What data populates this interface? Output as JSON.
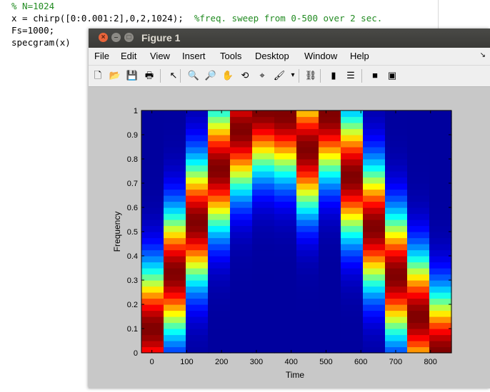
{
  "editor": {
    "lines": [
      {
        "text": "% N=1024",
        "comment": true
      },
      {
        "text": "x = chirp([0:0.001:2],0,2,1024);  %freq. sweep from 0-500 over 2 sec.",
        "comment": false
      },
      {
        "text": "Fs=1000;",
        "comment": false
      },
      {
        "text": "specgram(x)",
        "comment": false
      }
    ]
  },
  "window": {
    "title": "Figure 1",
    "buttons": {
      "close": "×",
      "minimize": "–",
      "maximize": "□"
    }
  },
  "menu": [
    "File",
    "Edit",
    "View",
    "Insert",
    "Tools",
    "Desktop",
    "Window",
    "Help"
  ],
  "menu_arrow": "↘",
  "toolbar": [
    {
      "name": "new-figure-icon",
      "glyph": "🗋"
    },
    {
      "name": "open-file-icon",
      "glyph": "📂"
    },
    {
      "name": "save-icon",
      "glyph": "💾"
    },
    {
      "name": "print-icon",
      "glyph": "🖶"
    },
    {
      "name": "edit-plot-arrow-icon",
      "glyph": "↖"
    },
    {
      "name": "zoom-in-icon",
      "glyph": "🔍"
    },
    {
      "name": "zoom-out-icon",
      "glyph": "🔎"
    },
    {
      "name": "pan-hand-icon",
      "glyph": "✋"
    },
    {
      "name": "rotate-3d-icon",
      "glyph": "⟲"
    },
    {
      "name": "data-cursor-icon",
      "glyph": "⌖"
    },
    {
      "name": "brush-icon",
      "glyph": "🖌"
    },
    {
      "name": "brush-dropdown-icon",
      "glyph": "▾"
    },
    {
      "name": "link-plot-icon",
      "glyph": "⛓"
    },
    {
      "name": "colorbar-icon",
      "glyph": "▮"
    },
    {
      "name": "legend-icon",
      "glyph": "☰"
    },
    {
      "name": "hide-plot-tools-icon",
      "glyph": "■"
    },
    {
      "name": "show-plot-tools-icon",
      "glyph": "▣"
    }
  ],
  "colors": {
    "titlebar": "#3c3b37",
    "menubar": "#efefef",
    "figure_bg": "#c8c8c8",
    "comment": "#228b22"
  },
  "chart_data": {
    "type": "heatmap",
    "colormap": "jet",
    "xlabel": "Time",
    "ylabel": "Frequency",
    "xlim": [
      -30,
      860
    ],
    "ylim": [
      0,
      1
    ],
    "xticks": [
      0,
      100,
      200,
      300,
      400,
      500,
      600,
      700,
      800
    ],
    "yticks": [
      0,
      0.1,
      0.2,
      0.3,
      0.4,
      0.5,
      0.6,
      0.7,
      0.8,
      0.9,
      1
    ],
    "columns": 14,
    "column_time_centers": [
      0,
      64,
      128,
      192,
      256,
      320,
      384,
      448,
      512,
      576,
      640,
      704,
      768,
      832
    ],
    "ridge_frequency": [
      0.1,
      0.33,
      0.54,
      0.76,
      0.92,
      1.0,
      0.98,
      0.84,
      0.98,
      0.73,
      0.52,
      0.32,
      0.15,
      0.0
    ],
    "grid": false
  }
}
